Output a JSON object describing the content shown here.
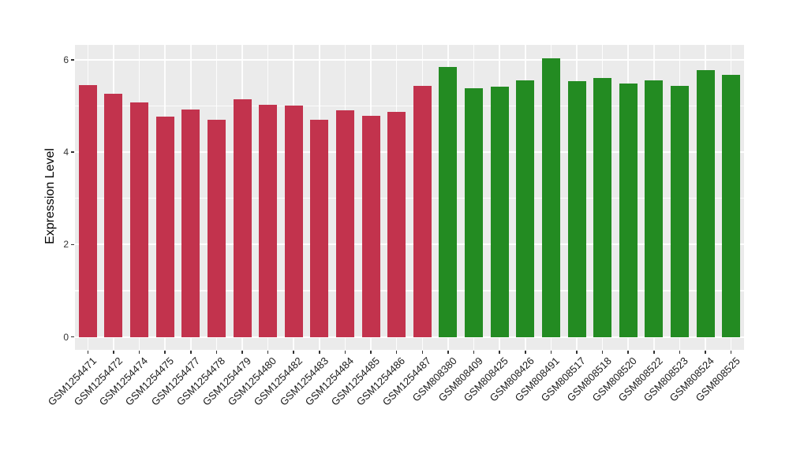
{
  "chart_data": {
    "type": "bar",
    "title": "",
    "xlabel": "",
    "ylabel": "Expression Level",
    "yticks": [
      0,
      2,
      4,
      6
    ],
    "minor_gridlines": [
      1,
      3,
      5
    ],
    "ylim": [
      0,
      6.03
    ],
    "ylim_panel": [
      -0.28,
      6.32
    ],
    "grid": "on",
    "legend": "none",
    "panel_bg": "#EBEBEB",
    "grid_color": "#FFFFFF",
    "series": [
      {
        "name": "group-red",
        "color": "#C2334D",
        "bars": [
          {
            "label": "GSM1254471",
            "value": 5.45
          },
          {
            "label": "GSM1254472",
            "value": 5.26
          },
          {
            "label": "GSM1254474",
            "value": 5.07
          },
          {
            "label": "GSM1254475",
            "value": 4.76
          },
          {
            "label": "GSM1254477",
            "value": 4.93
          },
          {
            "label": "GSM1254478",
            "value": 4.7
          },
          {
            "label": "GSM1254479",
            "value": 5.15
          },
          {
            "label": "GSM1254480",
            "value": 5.03
          },
          {
            "label": "GSM1254482",
            "value": 5.0
          },
          {
            "label": "GSM1254483",
            "value": 4.7
          },
          {
            "label": "GSM1254484",
            "value": 4.91
          },
          {
            "label": "GSM1254485",
            "value": 4.78
          },
          {
            "label": "GSM1254486",
            "value": 4.87
          },
          {
            "label": "GSM1254487",
            "value": 5.43
          }
        ]
      },
      {
        "name": "group-green",
        "color": "#238B22",
        "bars": [
          {
            "label": "GSM808380",
            "value": 5.85
          },
          {
            "label": "GSM808409",
            "value": 5.38
          },
          {
            "label": "GSM808425",
            "value": 5.41
          },
          {
            "label": "GSM808426",
            "value": 5.55
          },
          {
            "label": "GSM808491",
            "value": 6.03
          },
          {
            "label": "GSM808517",
            "value": 5.54
          },
          {
            "label": "GSM808518",
            "value": 5.61
          },
          {
            "label": "GSM808520",
            "value": 5.48
          },
          {
            "label": "GSM808522",
            "value": 5.55
          },
          {
            "label": "GSM808523",
            "value": 5.44
          },
          {
            "label": "GSM808524",
            "value": 5.78
          },
          {
            "label": "GSM808525",
            "value": 5.68
          }
        ]
      }
    ]
  }
}
